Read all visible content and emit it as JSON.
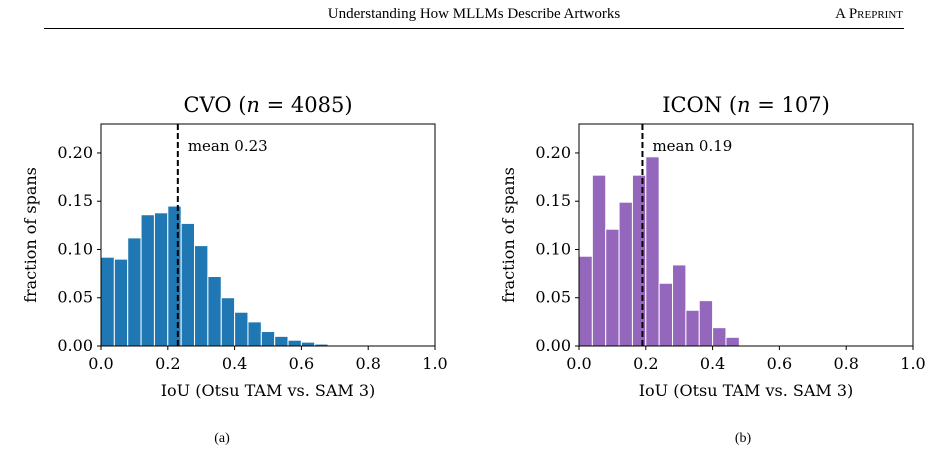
{
  "header": {
    "running_title": "Understanding How MLLMs Describe Artworks",
    "preprint_label": "A Preprint"
  },
  "chart_data": [
    {
      "type": "bar",
      "title": "CVO   (n = 4085)",
      "title_main": "CVO",
      "title_n": "(n = 4085)",
      "xlabel": "IoU (Otsu TAM vs. SAM 3)",
      "ylabel": "fraction of spans",
      "xlim": [
        0,
        1
      ],
      "ylim": [
        0,
        0.23
      ],
      "xticks": [
        "0.0",
        "0.2",
        "0.4",
        "0.6",
        "0.8",
        "1.0"
      ],
      "yticks": [
        "0.00",
        "0.05",
        "0.10",
        "0.15",
        "0.20"
      ],
      "bin_width": 0.04,
      "bin_starts": [
        0.0,
        0.04,
        0.08,
        0.12,
        0.16,
        0.2,
        0.24,
        0.28,
        0.32,
        0.36,
        0.4,
        0.44,
        0.48,
        0.52,
        0.56,
        0.6,
        0.64,
        0.68
      ],
      "values": [
        0.092,
        0.09,
        0.112,
        0.136,
        0.138,
        0.145,
        0.127,
        0.104,
        0.072,
        0.05,
        0.035,
        0.025,
        0.015,
        0.01,
        0.006,
        0.004,
        0.002,
        0.001
      ],
      "color": "#1f77b4",
      "mean": 0.23,
      "mean_label": "mean 0.23",
      "caption": "(a)"
    },
    {
      "type": "bar",
      "title": "ICON   (n = 107)",
      "title_main": "ICON",
      "title_n": "(n = 107)",
      "xlabel": "IoU (Otsu TAM vs. SAM 3)",
      "ylabel": "fraction of spans",
      "xlim": [
        0,
        1
      ],
      "ylim": [
        0,
        0.23
      ],
      "xticks": [
        "0.0",
        "0.2",
        "0.4",
        "0.6",
        "0.8",
        "1.0"
      ],
      "yticks": [
        "0.00",
        "0.05",
        "0.10",
        "0.15",
        "0.20"
      ],
      "bin_width": 0.04,
      "bin_starts": [
        0.0,
        0.04,
        0.08,
        0.12,
        0.16,
        0.2,
        0.24,
        0.28,
        0.32,
        0.36,
        0.4,
        0.44,
        0.48
      ],
      "values": [
        0.093,
        0.177,
        0.121,
        0.149,
        0.177,
        0.196,
        0.065,
        0.084,
        0.037,
        0.047,
        0.019,
        0.009,
        0.0
      ],
      "color": "#9467bd",
      "mean": 0.19,
      "mean_label": "mean 0.19",
      "caption": "(b)"
    }
  ]
}
